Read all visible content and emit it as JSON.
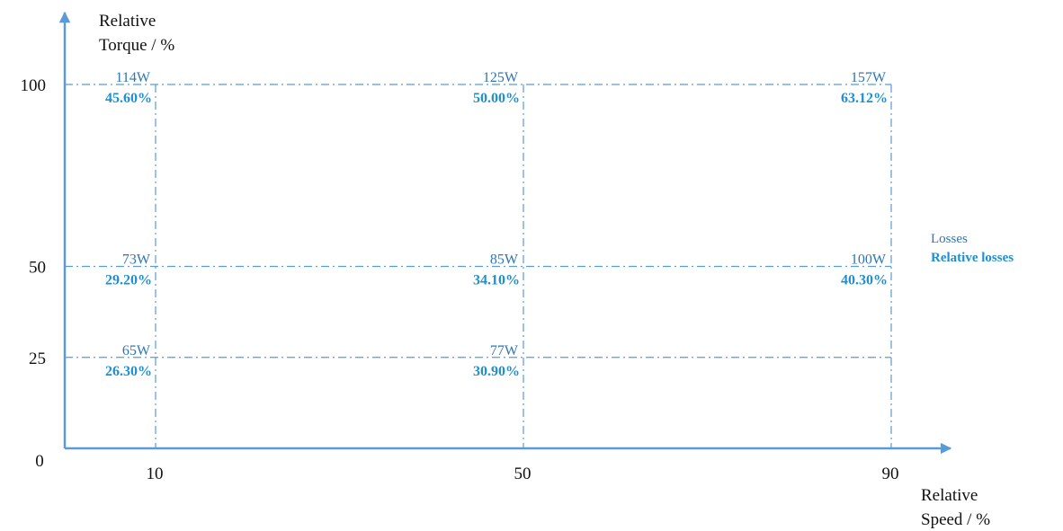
{
  "chart_data": {
    "type": "scatter",
    "title": "",
    "ylabel_lines": [
      "Relative",
      "Torque / %"
    ],
    "xlabel_lines": [
      "Relative",
      "Speed / %"
    ],
    "origin_label": "0",
    "x_ticks": [
      10,
      50,
      90
    ],
    "y_ticks": [
      25,
      50,
      100
    ],
    "xlim": [
      0,
      100
    ],
    "ylim": [
      0,
      100
    ],
    "grid": "dash-dot at tick values",
    "legend": {
      "position": "right",
      "entries": [
        {
          "label": "Losses",
          "style": "regular"
        },
        {
          "label": "Relative losses",
          "style": "bold"
        }
      ]
    },
    "points": [
      {
        "speed": 10,
        "torque": 100,
        "losses": "114W",
        "relative_losses": "45.60%"
      },
      {
        "speed": 50,
        "torque": 100,
        "losses": "125W",
        "relative_losses": "50.00%"
      },
      {
        "speed": 90,
        "torque": 100,
        "losses": "157W",
        "relative_losses": "63.12%"
      },
      {
        "speed": 10,
        "torque": 50,
        "losses": "73W",
        "relative_losses": "29.20%"
      },
      {
        "speed": 50,
        "torque": 50,
        "losses": "85W",
        "relative_losses": "34.10%"
      },
      {
        "speed": 90,
        "torque": 50,
        "losses": "100W",
        "relative_losses": "40.30%"
      },
      {
        "speed": 10,
        "torque": 25,
        "losses": "65W",
        "relative_losses": "26.30%"
      },
      {
        "speed": 50,
        "torque": 25,
        "losses": "77W",
        "relative_losses": "30.90%"
      }
    ]
  },
  "colors": {
    "axis": "#5b9bd5",
    "grid": "#5b9bd5",
    "loss_text": "#2e75b6",
    "relative_text": "#1f8fd0",
    "axis_text": "#111111"
  }
}
